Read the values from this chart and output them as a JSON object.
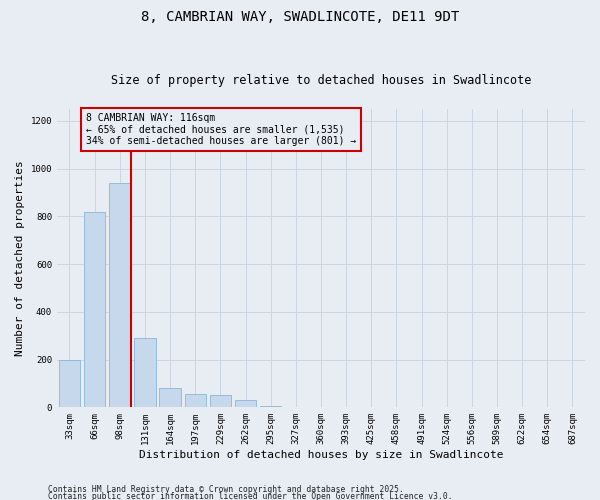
{
  "title": "8, CAMBRIAN WAY, SWADLINCOTE, DE11 9DT",
  "subtitle": "Size of property relative to detached houses in Swadlincote",
  "xlabel": "Distribution of detached houses by size in Swadlincote",
  "ylabel": "Number of detached properties",
  "categories": [
    "33sqm",
    "66sqm",
    "98sqm",
    "131sqm",
    "164sqm",
    "197sqm",
    "229sqm",
    "262sqm",
    "295sqm",
    "327sqm",
    "360sqm",
    "393sqm",
    "425sqm",
    "458sqm",
    "491sqm",
    "524sqm",
    "556sqm",
    "589sqm",
    "622sqm",
    "654sqm",
    "687sqm"
  ],
  "values": [
    200,
    820,
    940,
    290,
    80,
    55,
    50,
    30,
    5,
    0,
    0,
    0,
    0,
    0,
    0,
    0,
    0,
    0,
    0,
    0,
    0
  ],
  "bar_color": "#c5d8ec",
  "bar_edge_color": "#7bafd4",
  "grid_color": "#ccd6e3",
  "bg_color": "#e8edf4",
  "red_line_x": 2.43,
  "red_line_color": "#cc0000",
  "annotation_text": "8 CAMBRIAN WAY: 116sqm\n← 65% of detached houses are smaller (1,535)\n34% of semi-detached houses are larger (801) →",
  "annotation_box_color": "#cc0000",
  "ylim": [
    0,
    1250
  ],
  "yticks": [
    0,
    200,
    400,
    600,
    800,
    1000,
    1200
  ],
  "footnote1": "Contains HM Land Registry data © Crown copyright and database right 2025.",
  "footnote2": "Contains public sector information licensed under the Open Government Licence v3.0.",
  "title_fontsize": 10,
  "subtitle_fontsize": 8.5,
  "axis_label_fontsize": 8,
  "tick_fontsize": 6.5,
  "annot_fontsize": 7
}
